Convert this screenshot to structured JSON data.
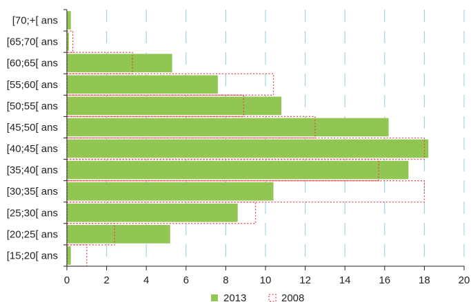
{
  "chart_data": {
    "type": "bar",
    "orientation": "horizontal",
    "categories": [
      "[70;+[ ans",
      "[65;70[ ans",
      "[60;65[ ans",
      "[55;60[ ans",
      "[50;55[ ans",
      "[45;50[ ans",
      "[40;45[ ans",
      "[35;40[ ans",
      "[30;35[ ans",
      "[25;30[ ans",
      "[20;25[ ans",
      "[15;20[ ans"
    ],
    "series": [
      {
        "name": "2013",
        "values": [
          0.2,
          0.1,
          5.3,
          7.6,
          10.8,
          16.2,
          18.2,
          17.2,
          10.4,
          8.6,
          5.2,
          0.2
        ],
        "color": "#92c653",
        "style": "filled"
      },
      {
        "name": "2008",
        "values": [
          0.0,
          0.3,
          3.3,
          10.4,
          8.9,
          12.5,
          18.0,
          15.7,
          18.0,
          9.5,
          2.4,
          1.0
        ],
        "color": "#e8474c",
        "style": "dotted-outline"
      }
    ],
    "x_ticks": [
      "0",
      "2",
      "4",
      "6",
      "8",
      "10",
      "12",
      "14",
      "16",
      "18",
      "20"
    ],
    "xlim": [
      0,
      20
    ],
    "grid": "vertical dashed",
    "grid_color": "#9fd6e2",
    "legend_position": "bottom-center",
    "title": "",
    "xlabel": "",
    "ylabel": ""
  }
}
